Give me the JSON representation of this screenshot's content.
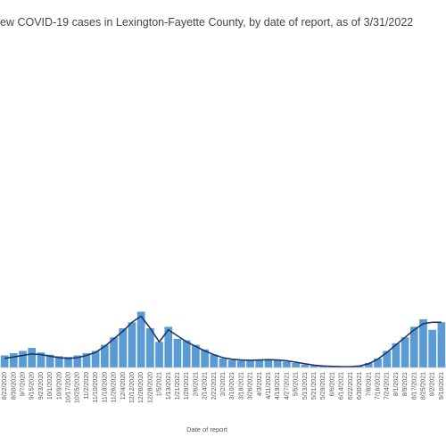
{
  "chart_data": {
    "type": "bar",
    "title": "ew COVID-19 cases in Lexington-Fayette County, by date of report, as of 3/31/2022",
    "xlabel": "Date of report",
    "ylabel": "",
    "grid": false,
    "legend": "none",
    "categories": [
      "8/22/2020",
      "8/30/2020",
      "9/7/2020",
      "9/15/2020",
      "9/23/2020",
      "10/1/2020",
      "10/9/2020",
      "10/17/2020",
      "10/25/2020",
      "11/2/2020",
      "11/10/2020",
      "11/18/2020",
      "11/26/2020",
      "12/4/2020",
      "12/12/2020",
      "12/20/2020",
      "12/28/2020",
      "1/5/2021",
      "1/13/2021",
      "1/21/2021",
      "1/29/2021",
      "2/6/2021",
      "2/14/2021",
      "2/22/2021",
      "3/2/2021",
      "3/10/2021",
      "3/18/2021",
      "3/26/2021",
      "4/3/2021",
      "4/11/2021",
      "4/19/2021",
      "4/27/2021",
      "5/5/2021",
      "5/13/2021",
      "5/21/2021",
      "5/29/2021",
      "6/6/2021",
      "6/14/2021",
      "6/22/2021",
      "6/30/2021",
      "7/8/2021",
      "7/16/2021",
      "7/24/2021",
      "8/1/2021",
      "8/9/2021",
      "8/17/2021",
      "8/25/2021",
      "9/2/2021",
      "9/10/2021"
    ],
    "series": [
      {
        "kind": "bar",
        "color": "#5b9bd5",
        "values": [
          80,
          95,
          110,
          130,
          100,
          85,
          75,
          70,
          80,
          95,
          110,
          150,
          200,
          260,
          300,
          370,
          260,
          170,
          270,
          190,
          180,
          150,
          120,
          85,
          60,
          50,
          45,
          45,
          48,
          50,
          52,
          40,
          30,
          20,
          12,
          10,
          8,
          6,
          5,
          10,
          30,
          60,
          110,
          160,
          200,
          270,
          320,
          250,
          300
        ]
      },
      {
        "kind": "line",
        "color": "#1f3864",
        "values": [
          60,
          70,
          80,
          90,
          85,
          75,
          65,
          60,
          65,
          80,
          100,
          140,
          190,
          240,
          300,
          340,
          260,
          170,
          250,
          210,
          170,
          140,
          110,
          85,
          65,
          55,
          50,
          48,
          50,
          52,
          50,
          45,
          35,
          25,
          15,
          10,
          8,
          6,
          6,
          10,
          25,
          55,
          100,
          150,
          200,
          250,
          290,
          300,
          300
        ]
      }
    ],
    "ylim": [
      0,
      2200
    ]
  }
}
